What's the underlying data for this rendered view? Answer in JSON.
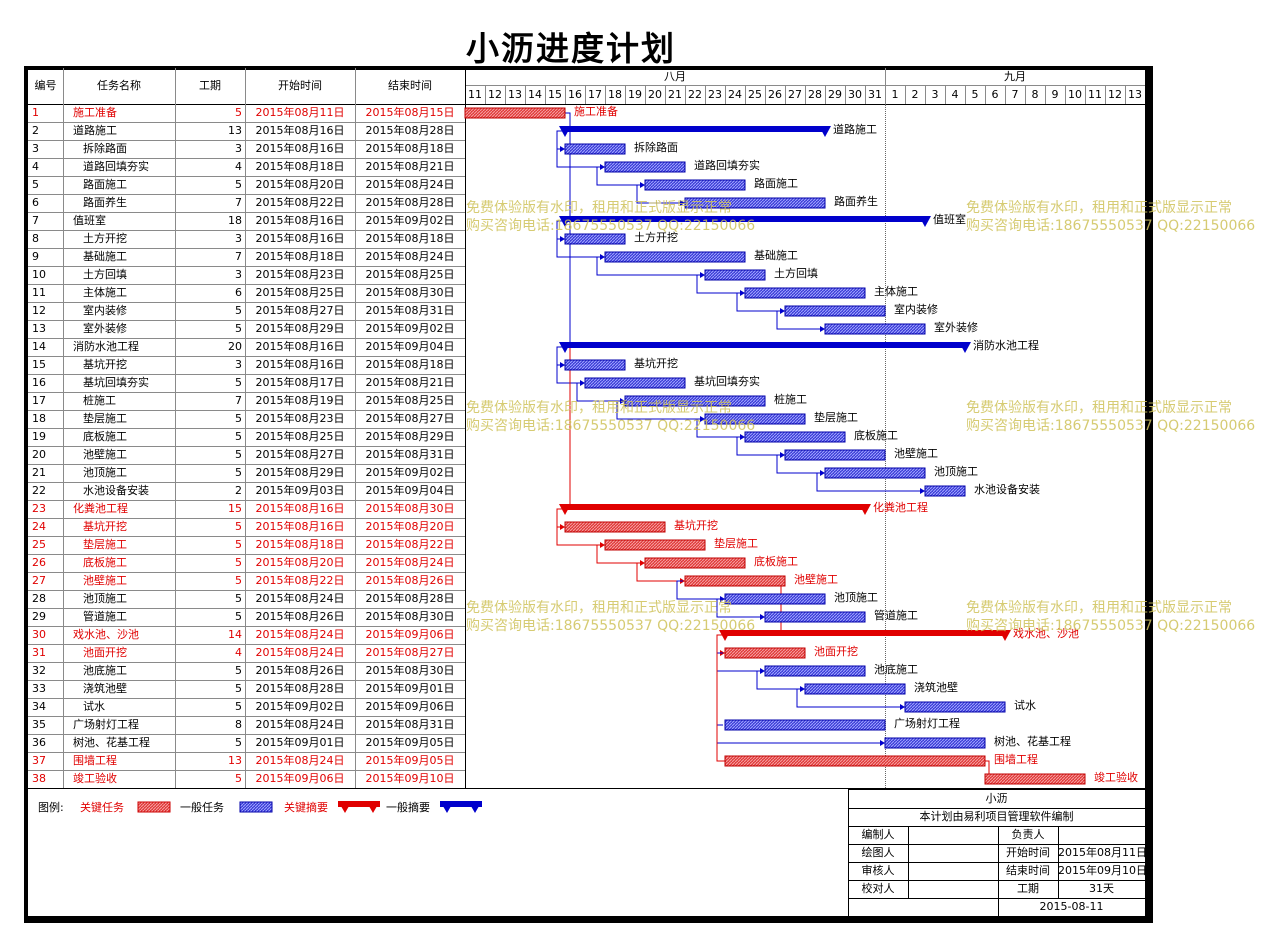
{
  "title": "小沥进度计划",
  "columns": {
    "id": "编号",
    "name": "任务名称",
    "duration": "工期",
    "start": "开始时间",
    "end": "结束时间"
  },
  "months": [
    "八月",
    "九月"
  ],
  "days": [
    "11",
    "12",
    "13",
    "14",
    "15",
    "16",
    "17",
    "18",
    "19",
    "20",
    "21",
    "22",
    "23",
    "24",
    "25",
    "26",
    "27",
    "28",
    "29",
    "30",
    "31",
    "1",
    "2",
    "3",
    "4",
    "5",
    "6",
    "7",
    "8",
    "9",
    "10",
    "11",
    "12",
    "13"
  ],
  "tasks": [
    {
      "id": "1",
      "name": "施工准备",
      "dur": "5",
      "start": "2015年08月11日",
      "end": "2015年08月15日",
      "s": 0,
      "d": 5,
      "type": "crit",
      "indent": 0,
      "label": "施工准备"
    },
    {
      "id": "2",
      "name": "道路施工",
      "dur": "13",
      "start": "2015年08月16日",
      "end": "2015年08月28日",
      "s": 5,
      "d": 13,
      "type": "sum",
      "indent": 0,
      "label": "道路施工"
    },
    {
      "id": "3",
      "name": "拆除路面",
      "dur": "3",
      "start": "2015年08月16日",
      "end": "2015年08月18日",
      "s": 5,
      "d": 3,
      "type": "task",
      "indent": 1,
      "label": "拆除路面"
    },
    {
      "id": "4",
      "name": "道路回填夯实",
      "dur": "4",
      "start": "2015年08月18日",
      "end": "2015年08月21日",
      "s": 7,
      "d": 4,
      "type": "task",
      "indent": 1,
      "label": "道路回填夯实"
    },
    {
      "id": "5",
      "name": "路面施工",
      "dur": "5",
      "start": "2015年08月20日",
      "end": "2015年08月24日",
      "s": 9,
      "d": 5,
      "type": "task",
      "indent": 1,
      "label": "路面施工"
    },
    {
      "id": "6",
      "name": "路面养生",
      "dur": "7",
      "start": "2015年08月22日",
      "end": "2015年08月28日",
      "s": 11,
      "d": 7,
      "type": "task",
      "indent": 1,
      "label": "路面养生"
    },
    {
      "id": "7",
      "name": "值班室",
      "dur": "18",
      "start": "2015年08月16日",
      "end": "2015年09月02日",
      "s": 5,
      "d": 18,
      "type": "sum",
      "indent": 0,
      "label": "值班室"
    },
    {
      "id": "8",
      "name": "土方开挖",
      "dur": "3",
      "start": "2015年08月16日",
      "end": "2015年08月18日",
      "s": 5,
      "d": 3,
      "type": "task",
      "indent": 1,
      "label": "土方开挖"
    },
    {
      "id": "9",
      "name": "基础施工",
      "dur": "7",
      "start": "2015年08月18日",
      "end": "2015年08月24日",
      "s": 7,
      "d": 7,
      "type": "task",
      "indent": 1,
      "label": "基础施工"
    },
    {
      "id": "10",
      "name": "土方回填",
      "dur": "3",
      "start": "2015年08月23日",
      "end": "2015年08月25日",
      "s": 12,
      "d": 3,
      "type": "task",
      "indent": 1,
      "label": "土方回填"
    },
    {
      "id": "11",
      "name": "主体施工",
      "dur": "6",
      "start": "2015年08月25日",
      "end": "2015年08月30日",
      "s": 14,
      "d": 6,
      "type": "task",
      "indent": 1,
      "label": "主体施工"
    },
    {
      "id": "12",
      "name": "室内装修",
      "dur": "5",
      "start": "2015年08月27日",
      "end": "2015年08月31日",
      "s": 16,
      "d": 5,
      "type": "task",
      "indent": 1,
      "label": "室内装修"
    },
    {
      "id": "13",
      "name": "室外装修",
      "dur": "5",
      "start": "2015年08月29日",
      "end": "2015年09月02日",
      "s": 18,
      "d": 5,
      "type": "task",
      "indent": 1,
      "label": "室外装修"
    },
    {
      "id": "14",
      "name": "消防水池工程",
      "dur": "20",
      "start": "2015年08月16日",
      "end": "2015年09月04日",
      "s": 5,
      "d": 20,
      "type": "sum",
      "indent": 0,
      "label": "消防水池工程"
    },
    {
      "id": "15",
      "name": "基坑开挖",
      "dur": "3",
      "start": "2015年08月16日",
      "end": "2015年08月18日",
      "s": 5,
      "d": 3,
      "type": "task",
      "indent": 1,
      "label": "基坑开挖"
    },
    {
      "id": "16",
      "name": "基坑回填夯实",
      "dur": "5",
      "start": "2015年08月17日",
      "end": "2015年08月21日",
      "s": 6,
      "d": 5,
      "type": "task",
      "indent": 1,
      "label": "基坑回填夯实"
    },
    {
      "id": "17",
      "name": "桩施工",
      "dur": "7",
      "start": "2015年08月19日",
      "end": "2015年08月25日",
      "s": 8,
      "d": 7,
      "type": "task",
      "indent": 1,
      "label": "桩施工"
    },
    {
      "id": "18",
      "name": "垫层施工",
      "dur": "5",
      "start": "2015年08月23日",
      "end": "2015年08月27日",
      "s": 12,
      "d": 5,
      "type": "task",
      "indent": 1,
      "label": "垫层施工"
    },
    {
      "id": "19",
      "name": "底板施工",
      "dur": "5",
      "start": "2015年08月25日",
      "end": "2015年08月29日",
      "s": 14,
      "d": 5,
      "type": "task",
      "indent": 1,
      "label": "底板施工"
    },
    {
      "id": "20",
      "name": "池壁施工",
      "dur": "5",
      "start": "2015年08月27日",
      "end": "2015年08月31日",
      "s": 16,
      "d": 5,
      "type": "task",
      "indent": 1,
      "label": "池壁施工"
    },
    {
      "id": "21",
      "name": "池顶施工",
      "dur": "5",
      "start": "2015年08月29日",
      "end": "2015年09月02日",
      "s": 18,
      "d": 5,
      "type": "task",
      "indent": 1,
      "label": "池顶施工"
    },
    {
      "id": "22",
      "name": "水池设备安装",
      "dur": "2",
      "start": "2015年09月03日",
      "end": "2015年09月04日",
      "s": 23,
      "d": 2,
      "type": "task",
      "indent": 1,
      "label": "水池设备安装"
    },
    {
      "id": "23",
      "name": "化粪池工程",
      "dur": "15",
      "start": "2015年08月16日",
      "end": "2015年08月30日",
      "s": 5,
      "d": 15,
      "type": "csum",
      "indent": 0,
      "label": "化粪池工程"
    },
    {
      "id": "24",
      "name": "基坑开挖",
      "dur": "5",
      "start": "2015年08月16日",
      "end": "2015年08月20日",
      "s": 5,
      "d": 5,
      "type": "crit",
      "indent": 1,
      "label": "基坑开挖"
    },
    {
      "id": "25",
      "name": "垫层施工",
      "dur": "5",
      "start": "2015年08月18日",
      "end": "2015年08月22日",
      "s": 7,
      "d": 5,
      "type": "crit",
      "indent": 1,
      "label": "垫层施工"
    },
    {
      "id": "26",
      "name": "底板施工",
      "dur": "5",
      "start": "2015年08月20日",
      "end": "2015年08月24日",
      "s": 9,
      "d": 5,
      "type": "crit",
      "indent": 1,
      "label": "底板施工"
    },
    {
      "id": "27",
      "name": "池壁施工",
      "dur": "5",
      "start": "2015年08月22日",
      "end": "2015年08月26日",
      "s": 11,
      "d": 5,
      "type": "crit",
      "indent": 1,
      "label": "池壁施工"
    },
    {
      "id": "28",
      "name": "池顶施工",
      "dur": "5",
      "start": "2015年08月24日",
      "end": "2015年08月28日",
      "s": 13,
      "d": 5,
      "type": "task",
      "indent": 1,
      "label": "池顶施工"
    },
    {
      "id": "29",
      "name": "管道施工",
      "dur": "5",
      "start": "2015年08月26日",
      "end": "2015年08月30日",
      "s": 15,
      "d": 5,
      "type": "task",
      "indent": 1,
      "label": "管道施工"
    },
    {
      "id": "30",
      "name": "戏水池、沙池",
      "dur": "14",
      "start": "2015年08月24日",
      "end": "2015年09月06日",
      "s": 13,
      "d": 14,
      "type": "csum",
      "indent": 0,
      "label": "戏水池、沙池"
    },
    {
      "id": "31",
      "name": "池面开挖",
      "dur": "4",
      "start": "2015年08月24日",
      "end": "2015年08月27日",
      "s": 13,
      "d": 4,
      "type": "crit",
      "indent": 1,
      "label": "池面开挖"
    },
    {
      "id": "32",
      "name": "池底施工",
      "dur": "5",
      "start": "2015年08月26日",
      "end": "2015年08月30日",
      "s": 15,
      "d": 5,
      "type": "task",
      "indent": 1,
      "label": "池底施工"
    },
    {
      "id": "33",
      "name": "浇筑池壁",
      "dur": "5",
      "start": "2015年08月28日",
      "end": "2015年09月01日",
      "s": 17,
      "d": 5,
      "type": "task",
      "indent": 1,
      "label": "浇筑池壁"
    },
    {
      "id": "34",
      "name": "试水",
      "dur": "5",
      "start": "2015年09月02日",
      "end": "2015年09月06日",
      "s": 22,
      "d": 5,
      "type": "task",
      "indent": 1,
      "label": "试水"
    },
    {
      "id": "35",
      "name": "广场射灯工程",
      "dur": "8",
      "start": "2015年08月24日",
      "end": "2015年08月31日",
      "s": 13,
      "d": 8,
      "type": "task",
      "indent": 0,
      "label": "广场射灯工程"
    },
    {
      "id": "36",
      "name": "树池、花基工程",
      "dur": "5",
      "start": "2015年09月01日",
      "end": "2015年09月05日",
      "s": 21,
      "d": 5,
      "type": "task",
      "indent": 0,
      "label": "树池、花基工程"
    },
    {
      "id": "37",
      "name": "围墙工程",
      "dur": "13",
      "start": "2015年08月24日",
      "end": "2015年09月05日",
      "s": 13,
      "d": 13,
      "type": "crit",
      "indent": 0,
      "label": "围墙工程"
    },
    {
      "id": "38",
      "name": "竣工验收",
      "dur": "5",
      "start": "2015年09月06日",
      "end": "2015年09月10日",
      "s": 26,
      "d": 5,
      "type": "crit",
      "indent": 0,
      "label": "竣工验收"
    }
  ],
  "watermark": {
    "line1": "免费体验版有水印，租用和正式版显示正常",
    "line2": "购买咨询电话:18675550537 QQ:22150066"
  },
  "legend": {
    "title": "图例:",
    "critical_task": "关键任务",
    "normal_task": "一般任务",
    "critical_summary": "关键摘要",
    "normal_summary": "一般摘要"
  },
  "info": {
    "project": "小沥",
    "note": "本计划由易利项目管理软件编制",
    "editor_label": "编制人",
    "responsible_label": "负责人",
    "drawer_label": "绘图人",
    "start_label": "开始时间",
    "start_value": "2015年08月11日",
    "reviewer_label": "审核人",
    "end_label": "结束时间",
    "end_value": "2015年09月10日",
    "checker_label": "校对人",
    "duration_label": "工期",
    "duration_value": "31天",
    "date": "2015-08-11"
  },
  "colors": {
    "critical": "#e00000",
    "normal": "#0000cc",
    "grid": "#8a8a8a",
    "watermark": "#cfc25a"
  }
}
